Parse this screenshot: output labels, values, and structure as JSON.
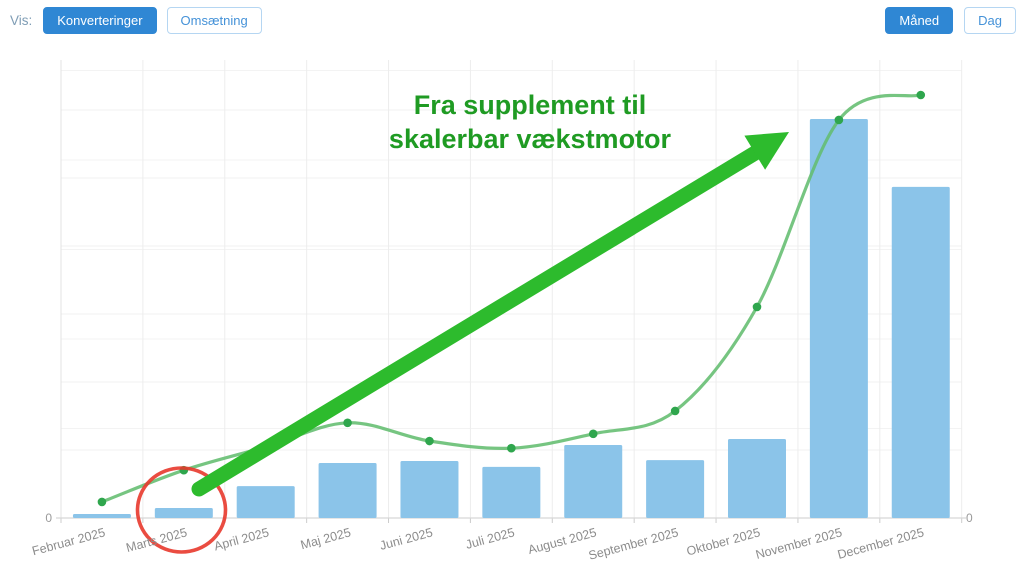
{
  "toolbar": {
    "vis_label": "Vis:",
    "view_toggle": [
      {
        "label": "Konverteringer",
        "active": true
      },
      {
        "label": "Omsætning",
        "active": false
      }
    ],
    "period_toggle": [
      {
        "label": "Måned",
        "active": true
      },
      {
        "label": "Dag",
        "active": false
      }
    ]
  },
  "chart_data": {
    "type": "bar",
    "subtype": "bar-with-trend-line",
    "title": "",
    "categories": [
      "Februar 2025",
      "Marts 2025",
      "April 2025",
      "Maj 2025",
      "Juni 2025",
      "Juli 2025",
      "August 2025",
      "September 2025",
      "Oktober 2025",
      "November 2025",
      "December 2025"
    ],
    "series": [
      {
        "name": "bars",
        "type": "bar",
        "color": "#8bc4e9",
        "values": [
          1,
          2.5,
          8,
          13.8,
          14.3,
          12.8,
          18.3,
          14.5,
          19.8,
          100,
          83
        ]
      },
      {
        "name": "trend-line",
        "type": "line",
        "color": "#63bd70",
        "point_color": "#2fa64d",
        "values": [
          3.8,
          11.3,
          16.8,
          22.5,
          18.2,
          16.5,
          19.9,
          25.3,
          49.9,
          94.1,
          100
        ]
      }
    ],
    "values_are_relative_estimates": true,
    "ylim": [
      0,
      105
    ],
    "y_axis_left_ticks": [
      "0"
    ],
    "y_axis_right_ticks": [
      "0"
    ],
    "grid": true,
    "legend": "none",
    "axis_label_color": "#8c8c8c",
    "annotation": {
      "title_line1": "Fra supplement til",
      "title_line2": "skalerbar vækstmotor",
      "title_color": "#1f9b23",
      "arrow_color": "#2dbb2d",
      "highlight_circle_color": "#e8392c",
      "highlighted_category": "Marts 2025"
    }
  }
}
